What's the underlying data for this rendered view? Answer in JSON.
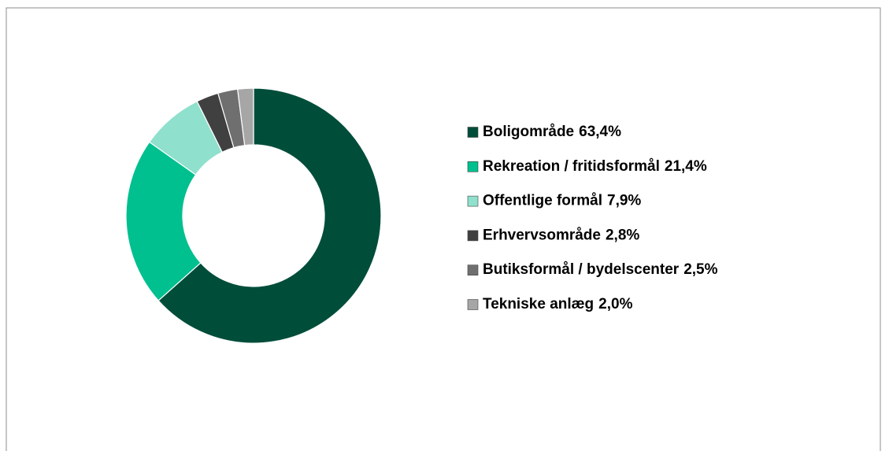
{
  "chart_data": {
    "type": "pie",
    "categories": [
      "Boligområde",
      "Rekreation / fritidsformål",
      "Offentlige formål",
      "Erhvervsområde",
      "Butiksformål / bydelscenter",
      "Tekniske anlæg"
    ],
    "values": [
      63.4,
      21.4,
      7.9,
      2.8,
      2.5,
      2.0
    ],
    "value_labels": [
      "63,4%",
      "21,4%",
      "7,9%",
      "2,8%",
      "2,5%",
      "2,0%"
    ],
    "colors": [
      "#004d3a",
      "#00c08f",
      "#8fe0cc",
      "#404040",
      "#6f6f6f",
      "#a6a6a6"
    ],
    "legend": "right"
  }
}
